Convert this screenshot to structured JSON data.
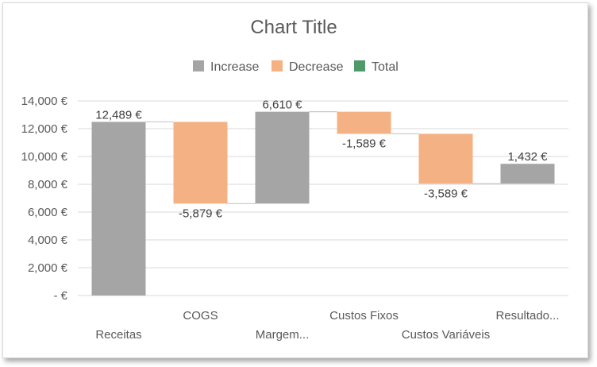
{
  "chart_data": {
    "type": "waterfall",
    "title": "Chart Title",
    "legend": {
      "placement": "top",
      "entries": [
        {
          "name": "Increase",
          "color": "#a5a5a5"
        },
        {
          "name": "Decrease",
          "color": "#f4b183"
        },
        {
          "name": "Total",
          "color": "#4e9a6a"
        }
      ]
    },
    "categories": [
      "Receitas",
      "COGS",
      "Margem...",
      "Custos Fixos",
      "Custos Variáveis",
      "Resultado..."
    ],
    "values": [
      12489,
      -5879,
      6610,
      -1589,
      -3589,
      1432
    ],
    "data_labels": [
      "12,489 €",
      "-5,879 €",
      "6,610 €",
      "-1,589 €",
      "-3,589 €",
      "1,432 €"
    ],
    "y_ticks": [
      0,
      2000,
      4000,
      6000,
      8000,
      10000,
      12000,
      14000
    ],
    "y_tick_labels": [
      "-  €",
      "2,000 €",
      "4,000 €",
      "6,000 €",
      "8,000 €",
      "10,000 €",
      "12,000 €",
      "14,000 €"
    ],
    "ylim": [
      0,
      14000
    ],
    "grid": true,
    "xlabel": "",
    "ylabel": "",
    "colors": {
      "increase": "#a5a5a5",
      "decrease": "#f4b183",
      "total": "#4e9a6a",
      "grid": "#d9d9d9",
      "text": "#595959"
    }
  }
}
